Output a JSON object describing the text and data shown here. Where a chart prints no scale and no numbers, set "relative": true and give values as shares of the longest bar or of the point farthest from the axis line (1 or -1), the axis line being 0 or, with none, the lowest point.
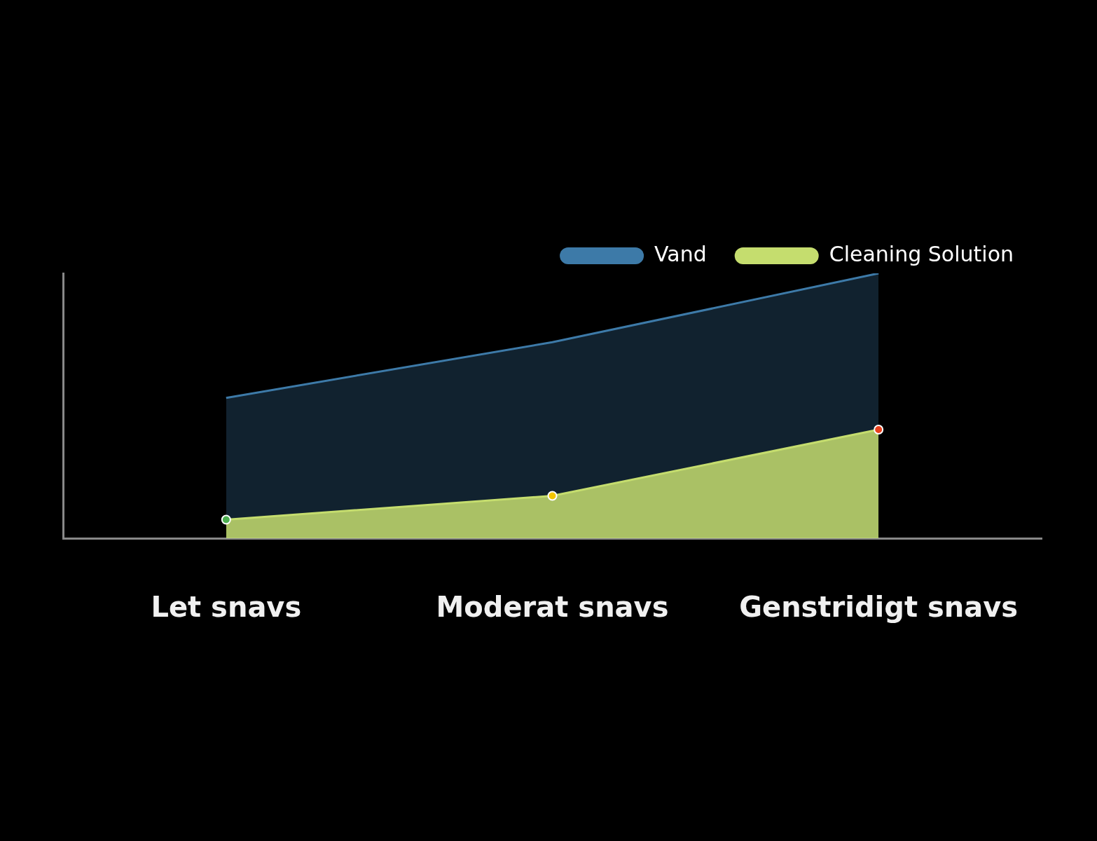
{
  "chart_data": {
    "type": "area",
    "relative": true,
    "categories": [
      "Let snavs",
      "Moderat snavs",
      "Genstridigt snavs"
    ],
    "series": [
      {
        "name": "Vand",
        "color": "#3d7aa8",
        "values": [
          0.53,
          0.74,
          1
        ]
      },
      {
        "name": "Cleaning Solution",
        "color": "#c5dd6e",
        "values": [
          0.07,
          0.16,
          0.41
        ],
        "marker": "circle",
        "colors": [
          "#4caf50",
          "#f2c500",
          "#e8401c"
        ]
      }
    ],
    "legend": "top right",
    "grid": false
  }
}
